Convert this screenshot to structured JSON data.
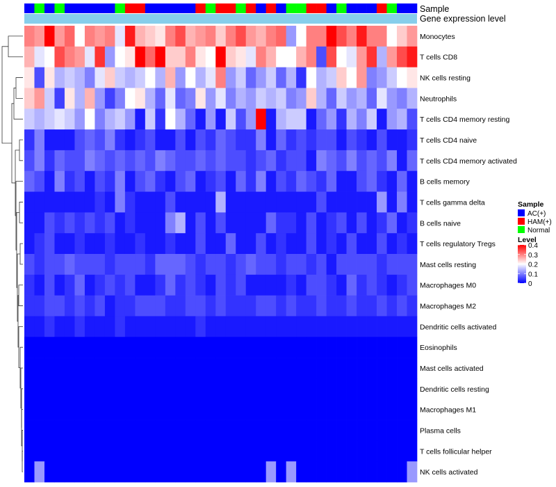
{
  "chart_data": {
    "type": "heatmap",
    "annotation_labels": {
      "sample": "Sample",
      "expression": "Gene expression level"
    },
    "rows": [
      "Monocytes",
      "T cells CD8",
      "NK cells resting",
      "Neutrophils",
      "T cells CD4 memory resting",
      "T cells CD4 naive",
      "T cells CD4 memory activated",
      "B cells memory",
      "T cells gamma delta",
      "B cells naive",
      "T cells regulatory  Tregs",
      "Mast cells resting",
      "Macrophages M0",
      "Macrophages M2",
      "Dendritic cells activated",
      "Eosinophils",
      "Mast cells activated",
      "Dendritic cells resting",
      "Macrophages M1",
      "Plasma cells",
      "T cells follicular helper",
      "NK cells activated"
    ],
    "columns": [
      "AC(+)",
      "Normal",
      "AC(+)",
      "Normal",
      "AC(+)",
      "AC(+)",
      "AC(+)",
      "AC(+)",
      "AC(+)",
      "Normal",
      "HAM(+)",
      "HAM(+)",
      "AC(+)",
      "AC(+)",
      "AC(+)",
      "AC(+)",
      "AC(+)",
      "HAM(+)",
      "Normal",
      "HAM(+)",
      "HAM(+)",
      "Normal",
      "HAM(+)",
      "AC(+)",
      "HAM(+)",
      "AC(+)",
      "Normal",
      "Normal",
      "HAM(+)",
      "HAM(+)",
      "AC(+)",
      "Normal",
      "AC(+)",
      "AC(+)",
      "AC(+)",
      "HAM(+)",
      "Normal",
      "AC(+)",
      "AC(+)"
    ],
    "values": [
      [
        0.3,
        0.28,
        0.4,
        0.28,
        0.32,
        0.2,
        0.3,
        0.28,
        0.3,
        0.18,
        0.38,
        0.26,
        0.24,
        0.22,
        0.3,
        0.34,
        0.26,
        0.28,
        0.3,
        0.24,
        0.3,
        0.34,
        0.28,
        0.26,
        0.3,
        0.32,
        0.12,
        0.2,
        0.3,
        0.3,
        0.4,
        0.34,
        0.3,
        0.38,
        0.3,
        0.3,
        0.2,
        0.24,
        0.28
      ],
      [
        0.26,
        0.18,
        0.2,
        0.34,
        0.3,
        0.28,
        0.18,
        0.36,
        0.12,
        0.2,
        0.22,
        0.4,
        0.32,
        0.4,
        0.24,
        0.24,
        0.3,
        0.22,
        0.2,
        0.4,
        0.24,
        0.22,
        0.18,
        0.3,
        0.26,
        0.2,
        0.2,
        0.26,
        0.3,
        0.06,
        0.34,
        0.2,
        0.18,
        0.28,
        0.36,
        0.14,
        0.28,
        0.34,
        0.38
      ],
      [
        0.22,
        0.06,
        0.22,
        0.14,
        0.16,
        0.14,
        0.1,
        0.18,
        0.24,
        0.16,
        0.14,
        0.16,
        0.2,
        0.14,
        0.26,
        0.12,
        0.2,
        0.14,
        0.18,
        0.3,
        0.12,
        0.16,
        0.08,
        0.12,
        0.16,
        0.08,
        0.14,
        0.04,
        0.2,
        0.14,
        0.16,
        0.24,
        0.2,
        0.28,
        0.1,
        0.12,
        0.16,
        0.2,
        0.22
      ],
      [
        0.24,
        0.28,
        0.16,
        0.05,
        0.22,
        0.14,
        0.26,
        0.12,
        0.05,
        0.1,
        0.2,
        0.22,
        0.14,
        0.08,
        0.18,
        0.08,
        0.1,
        0.22,
        0.12,
        0.18,
        0.1,
        0.14,
        0.12,
        0.16,
        0.14,
        0.16,
        0.1,
        0.12,
        0.24,
        0.14,
        0.08,
        0.16,
        0.12,
        0.14,
        0.08,
        0.18,
        0.12,
        0.1,
        0.14
      ],
      [
        0.16,
        0.14,
        0.16,
        0.18,
        0.16,
        0.12,
        0.2,
        0.1,
        0.14,
        0.16,
        0.12,
        0.02,
        0.16,
        0.04,
        0.2,
        0.14,
        0.08,
        0.02,
        0.12,
        0.02,
        0.16,
        0.06,
        0.12,
        0.4,
        0.02,
        0.14,
        0.16,
        0.16,
        0.02,
        0.08,
        0.12,
        0.04,
        0.14,
        0.1,
        0.16,
        0.02,
        0.12,
        0.14,
        0.06
      ],
      [
        0.04,
        0.1,
        0.02,
        0.02,
        0.02,
        0.06,
        0.08,
        0.06,
        0.1,
        0.04,
        0.02,
        0.04,
        0.06,
        0.02,
        0.02,
        0.06,
        0.02,
        0.06,
        0.04,
        0.08,
        0.06,
        0.04,
        0.04,
        0.1,
        0.02,
        0.08,
        0.04,
        0.06,
        0.04,
        0.06,
        0.06,
        0.02,
        0.06,
        0.04,
        0.02,
        0.06,
        0.02,
        0.02,
        0.04
      ],
      [
        0.06,
        0.1,
        0.04,
        0.08,
        0.06,
        0.06,
        0.1,
        0.08,
        0.06,
        0.08,
        0.06,
        0.08,
        0.06,
        0.1,
        0.08,
        0.06,
        0.06,
        0.08,
        0.06,
        0.08,
        0.06,
        0.06,
        0.04,
        0.06,
        0.08,
        0.04,
        0.06,
        0.06,
        0.02,
        0.1,
        0.08,
        0.06,
        0.1,
        0.06,
        0.08,
        0.06,
        0.1,
        0.02,
        0.08
      ],
      [
        0.08,
        0.06,
        0.02,
        0.1,
        0.04,
        0.06,
        0.02,
        0.06,
        0.04,
        0.1,
        0.02,
        0.06,
        0.08,
        0.04,
        0.02,
        0.06,
        0.08,
        0.02,
        0.04,
        0.06,
        0.02,
        0.08,
        0.04,
        0.1,
        0.02,
        0.06,
        0.04,
        0.08,
        0.06,
        0.04,
        0.08,
        0.02,
        0.02,
        0.06,
        0.08,
        0.04,
        0.02,
        0.08,
        0.02
      ],
      [
        0.02,
        0.02,
        0.02,
        0.02,
        0.02,
        0.02,
        0.02,
        0.04,
        0.02,
        0.1,
        0.04,
        0.02,
        0.02,
        0.02,
        0.06,
        0.02,
        0.02,
        0.02,
        0.02,
        0.14,
        0.02,
        0.02,
        0.02,
        0.02,
        0.02,
        0.02,
        0.02,
        0.02,
        0.02,
        0.06,
        0.02,
        0.02,
        0.02,
        0.02,
        0.02,
        0.12,
        0.02,
        0.1,
        0.02
      ],
      [
        0.02,
        0.02,
        0.06,
        0.04,
        0.06,
        0.04,
        0.06,
        0.04,
        0.06,
        0.02,
        0.04,
        0.02,
        0.02,
        0.02,
        0.1,
        0.14,
        0.02,
        0.06,
        0.02,
        0.06,
        0.02,
        0.02,
        0.02,
        0.02,
        0.08,
        0.04,
        0.04,
        0.02,
        0.06,
        0.02,
        0.04,
        0.06,
        0.02,
        0.06,
        0.02,
        0.04,
        0.08,
        0.02,
        0.04
      ],
      [
        0.02,
        0.04,
        0.06,
        0.02,
        0.02,
        0.04,
        0.02,
        0.02,
        0.04,
        0.02,
        0.02,
        0.04,
        0.02,
        0.02,
        0.04,
        0.02,
        0.02,
        0.06,
        0.02,
        0.02,
        0.08,
        0.02,
        0.02,
        0.06,
        0.02,
        0.04,
        0.02,
        0.02,
        0.06,
        0.02,
        0.04,
        0.02,
        0.06,
        0.02,
        0.02,
        0.06,
        0.02,
        0.04,
        0.02
      ],
      [
        0.06,
        0.04,
        0.06,
        0.06,
        0.08,
        0.06,
        0.06,
        0.06,
        0.04,
        0.06,
        0.06,
        0.06,
        0.04,
        0.08,
        0.08,
        0.08,
        0.06,
        0.04,
        0.06,
        0.06,
        0.04,
        0.06,
        0.08,
        0.06,
        0.06,
        0.04,
        0.06,
        0.06,
        0.04,
        0.06,
        0.02,
        0.06,
        0.06,
        0.06,
        0.06,
        0.04,
        0.06,
        0.06,
        0.06
      ],
      [
        0.04,
        0.02,
        0.06,
        0.02,
        0.04,
        0.08,
        0.02,
        0.04,
        0.06,
        0.04,
        0.06,
        0.02,
        0.02,
        0.04,
        0.08,
        0.04,
        0.06,
        0.04,
        0.02,
        0.06,
        0.04,
        0.06,
        0.02,
        0.02,
        0.02,
        0.02,
        0.04,
        0.02,
        0.06,
        0.06,
        0.04,
        0.02,
        0.08,
        0.04,
        0.06,
        0.04,
        0.02,
        0.04,
        0.06
      ],
      [
        0.04,
        0.04,
        0.06,
        0.06,
        0.04,
        0.06,
        0.04,
        0.06,
        0.02,
        0.04,
        0.04,
        0.06,
        0.06,
        0.06,
        0.04,
        0.04,
        0.06,
        0.06,
        0.04,
        0.06,
        0.04,
        0.04,
        0.04,
        0.06,
        0.06,
        0.04,
        0.06,
        0.04,
        0.04,
        0.06,
        0.04,
        0.04,
        0.06,
        0.04,
        0.04,
        0.06,
        0.04,
        0.06,
        0.04
      ],
      [
        0.02,
        0.02,
        0.04,
        0.02,
        0.02,
        0.04,
        0.02,
        0.02,
        0.02,
        0.04,
        0.02,
        0.02,
        0.02,
        0.02,
        0.02,
        0.02,
        0.02,
        0.04,
        0.02,
        0.02,
        0.02,
        0.02,
        0.02,
        0.02,
        0.02,
        0.02,
        0.02,
        0.02,
        0.02,
        0.02,
        0.02,
        0.02,
        0.02,
        0.02,
        0.02,
        0.02,
        0.02,
        0.02,
        0.02
      ],
      [
        0,
        0,
        0,
        0,
        0,
        0,
        0,
        0,
        0,
        0,
        0,
        0,
        0,
        0,
        0,
        0,
        0,
        0,
        0,
        0,
        0,
        0,
        0,
        0,
        0,
        0,
        0,
        0,
        0,
        0,
        0,
        0,
        0,
        0,
        0,
        0,
        0,
        0,
        0
      ],
      [
        0,
        0,
        0,
        0,
        0,
        0,
        0,
        0,
        0,
        0,
        0,
        0,
        0,
        0,
        0,
        0,
        0,
        0,
        0,
        0,
        0,
        0,
        0,
        0,
        0,
        0,
        0,
        0,
        0,
        0,
        0,
        0,
        0,
        0,
        0,
        0,
        0,
        0,
        0
      ],
      [
        0,
        0,
        0,
        0,
        0,
        0,
        0,
        0,
        0,
        0,
        0,
        0,
        0,
        0,
        0,
        0,
        0,
        0,
        0,
        0,
        0,
        0,
        0,
        0,
        0,
        0,
        0,
        0,
        0,
        0,
        0,
        0,
        0,
        0,
        0,
        0,
        0,
        0,
        0
      ],
      [
        0,
        0,
        0,
        0,
        0,
        0,
        0,
        0,
        0,
        0,
        0,
        0,
        0,
        0,
        0,
        0,
        0,
        0,
        0,
        0,
        0,
        0,
        0,
        0,
        0,
        0,
        0,
        0,
        0,
        0,
        0,
        0,
        0,
        0,
        0,
        0,
        0,
        0,
        0
      ],
      [
        0,
        0,
        0,
        0,
        0,
        0,
        0,
        0,
        0,
        0,
        0,
        0,
        0,
        0,
        0,
        0,
        0,
        0,
        0,
        0,
        0,
        0,
        0,
        0,
        0,
        0,
        0,
        0,
        0,
        0,
        0,
        0,
        0,
        0,
        0,
        0,
        0,
        0,
        0
      ],
      [
        0,
        0,
        0,
        0,
        0,
        0,
        0,
        0,
        0,
        0,
        0,
        0,
        0,
        0,
        0,
        0,
        0,
        0,
        0,
        0,
        0,
        0,
        0,
        0,
        0,
        0,
        0,
        0,
        0,
        0,
        0,
        0,
        0,
        0,
        0,
        0,
        0,
        0,
        0
      ],
      [
        0,
        0.12,
        0,
        0,
        0,
        0,
        0,
        0,
        0,
        0,
        0,
        0,
        0,
        0,
        0,
        0,
        0,
        0,
        0,
        0,
        0,
        0,
        0,
        0,
        0.12,
        0,
        0.12,
        0,
        0,
        0,
        0,
        0,
        0,
        0,
        0,
        0,
        0,
        0,
        0.12
      ]
    ],
    "color_scale": {
      "min": 0,
      "mid": 0.2,
      "max": 0.4,
      "low": "#0000ff",
      "midColor": "#ffffff",
      "high": "#ff0000"
    },
    "legend_sample": {
      "title": "Sample",
      "items": [
        {
          "label": "AC(+)",
          "color": "#0000ff"
        },
        {
          "label": "HAM(+)",
          "color": "#ff0000"
        },
        {
          "label": "Normal",
          "color": "#00ff00"
        }
      ]
    },
    "legend_level": {
      "title": "Level",
      "ticks": [
        "0.4",
        "0.3",
        "0.2",
        "0.1",
        "0"
      ]
    },
    "expression_bar_color": "#87ceeb"
  }
}
